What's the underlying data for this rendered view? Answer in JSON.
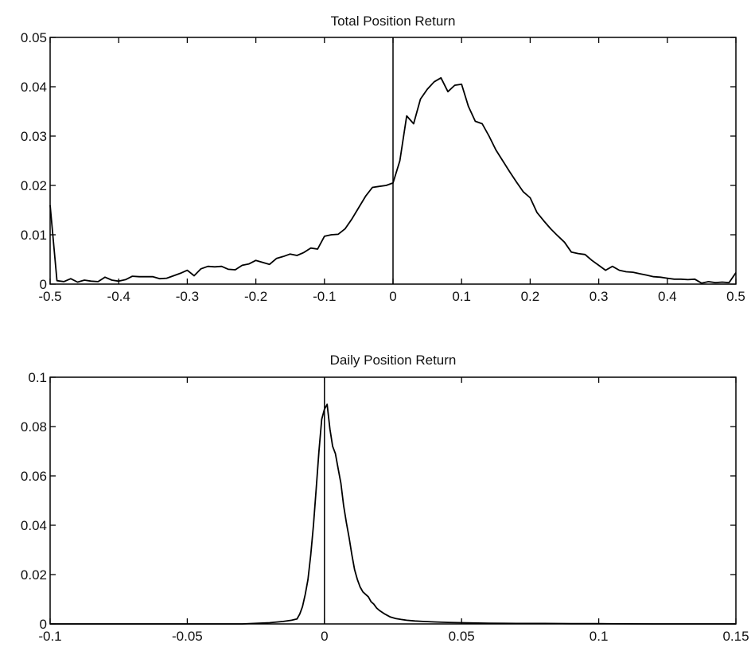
{
  "chart_data": [
    {
      "type": "line",
      "title": "Total Position Return",
      "xlabel": "",
      "ylabel": "",
      "xlim": [
        -0.5,
        0.5
      ],
      "ylim": [
        0,
        0.05
      ],
      "grid": false,
      "xticks": [
        "-0.5",
        "-0.4",
        "-0.3",
        "-0.2",
        "-0.1",
        "0",
        "0.1",
        "0.2",
        "0.3",
        "0.4",
        "0.5"
      ],
      "yticks": [
        "0",
        "0.01",
        "0.02",
        "0.03",
        "0.04",
        "0.05"
      ],
      "xtick_values": [
        -0.5,
        -0.4,
        -0.3,
        -0.2,
        -0.1,
        0,
        0.1,
        0.2,
        0.3,
        0.4,
        0.5
      ],
      "ytick_values": [
        0,
        0.01,
        0.02,
        0.03,
        0.04,
        0.05
      ],
      "vline_x": 0,
      "series": [
        {
          "x": [
            -0.5,
            -0.49,
            -0.48,
            -0.47,
            -0.46,
            -0.45,
            -0.44,
            -0.43,
            -0.42,
            -0.41,
            -0.4,
            -0.39,
            -0.38,
            -0.37,
            -0.36,
            -0.35,
            -0.34,
            -0.33,
            -0.32,
            -0.31,
            -0.3,
            -0.29,
            -0.28,
            -0.27,
            -0.26,
            -0.25,
            -0.24,
            -0.23,
            -0.22,
            -0.21,
            -0.2,
            -0.19,
            -0.18,
            -0.17,
            -0.16,
            -0.15,
            -0.14,
            -0.13,
            -0.12,
            -0.11,
            -0.1,
            -0.09,
            -0.08,
            -0.07,
            -0.06,
            -0.05,
            -0.04,
            -0.03,
            -0.02,
            -0.01,
            0,
            0.01,
            0.02,
            0.03,
            0.04,
            0.05,
            0.06,
            0.07,
            0.08,
            0.09,
            0.1,
            0.11,
            0.12,
            0.13,
            0.14,
            0.15,
            0.16,
            0.17,
            0.18,
            0.19,
            0.2,
            0.21,
            0.22,
            0.23,
            0.24,
            0.25,
            0.26,
            0.27,
            0.28,
            0.29,
            0.3,
            0.31,
            0.32,
            0.33,
            0.34,
            0.35,
            0.36,
            0.37,
            0.38,
            0.39,
            0.4,
            0.41,
            0.42,
            0.43,
            0.44,
            0.45,
            0.46,
            0.47,
            0.48,
            0.49,
            0.5
          ],
          "values": [
            0.016,
            0.0007,
            0.0005,
            0.0011,
            0.0004,
            0.0008,
            0.0006,
            0.0005,
            0.0014,
            0.0008,
            0.0006,
            0.0009,
            0.0016,
            0.0015,
            0.0015,
            0.0015,
            0.0011,
            0.0012,
            0.0017,
            0.0022,
            0.0028,
            0.0017,
            0.0031,
            0.0036,
            0.0035,
            0.0036,
            0.003,
            0.0029,
            0.0038,
            0.0041,
            0.0048,
            0.0044,
            0.004,
            0.0052,
            0.0056,
            0.0061,
            0.0058,
            0.0064,
            0.0073,
            0.0071,
            0.0097,
            0.01,
            0.0101,
            0.0112,
            0.0132,
            0.0155,
            0.0178,
            0.0196,
            0.0198,
            0.02,
            0.0205,
            0.025,
            0.0341,
            0.0325,
            0.0375,
            0.0395,
            0.041,
            0.0418,
            0.039,
            0.0403,
            0.0405,
            0.036,
            0.033,
            0.0325,
            0.03,
            0.0272,
            0.025,
            0.0228,
            0.0207,
            0.0187,
            0.0175,
            0.0145,
            0.0128,
            0.0112,
            0.0098,
            0.0085,
            0.0065,
            0.0062,
            0.006,
            0.0048,
            0.0038,
            0.0028,
            0.0036,
            0.0028,
            0.0025,
            0.0024,
            0.0021,
            0.0018,
            0.0015,
            0.0014,
            0.0012,
            0.001,
            0.001,
            0.0009,
            0.001,
            0.0002,
            0.0005,
            0.0003,
            0.0004,
            0.0003,
            0.0023
          ]
        }
      ]
    },
    {
      "type": "line",
      "title": "Daily Position Return",
      "xlabel": "",
      "ylabel": "",
      "xlim": [
        -0.1,
        0.15
      ],
      "ylim": [
        0,
        0.1
      ],
      "grid": false,
      "xticks": [
        "-0.1",
        "-0.05",
        "0",
        "0.05",
        "0.1",
        "0.15"
      ],
      "yticks": [
        "0",
        "0.02",
        "0.04",
        "0.06",
        "0.08",
        "0.1"
      ],
      "xtick_values": [
        -0.1,
        -0.05,
        0,
        0.05,
        0.1,
        0.15
      ],
      "ytick_values": [
        0,
        0.02,
        0.04,
        0.06,
        0.08,
        0.1
      ],
      "vline_x": 0,
      "series": [
        {
          "x": [
            -0.1,
            -0.05,
            -0.03,
            -0.02,
            -0.015,
            -0.012,
            -0.01,
            -0.009,
            -0.008,
            -0.007,
            -0.006,
            -0.005,
            -0.004,
            -0.003,
            -0.002,
            -0.001,
            0,
            0.001,
            0.002,
            0.003,
            0.004,
            0.005,
            0.006,
            0.007,
            0.008,
            0.009,
            0.01,
            0.011,
            0.012,
            0.013,
            0.014,
            0.015,
            0.016,
            0.017,
            0.018,
            0.019,
            0.02,
            0.022,
            0.024,
            0.026,
            0.028,
            0.03,
            0.033,
            0.036,
            0.04,
            0.045,
            0.05,
            0.06,
            0.07,
            0.08,
            0.09,
            0.1,
            0.12,
            0.15
          ],
          "values": [
            0,
            0,
            0,
            0.0005,
            0.001,
            0.0015,
            0.002,
            0.004,
            0.007,
            0.012,
            0.018,
            0.028,
            0.04,
            0.055,
            0.07,
            0.083,
            0.087,
            0.089,
            0.079,
            0.072,
            0.069,
            0.063,
            0.057,
            0.048,
            0.041,
            0.035,
            0.028,
            0.022,
            0.018,
            0.015,
            0.013,
            0.012,
            0.011,
            0.009,
            0.008,
            0.0065,
            0.0055,
            0.004,
            0.0028,
            0.0022,
            0.0018,
            0.0015,
            0.0012,
            0.001,
            0.0008,
            0.0006,
            0.0005,
            0.0003,
            0.0002,
            0.0002,
            0.0001,
            0.0001,
            0,
            0
          ]
        }
      ]
    }
  ]
}
